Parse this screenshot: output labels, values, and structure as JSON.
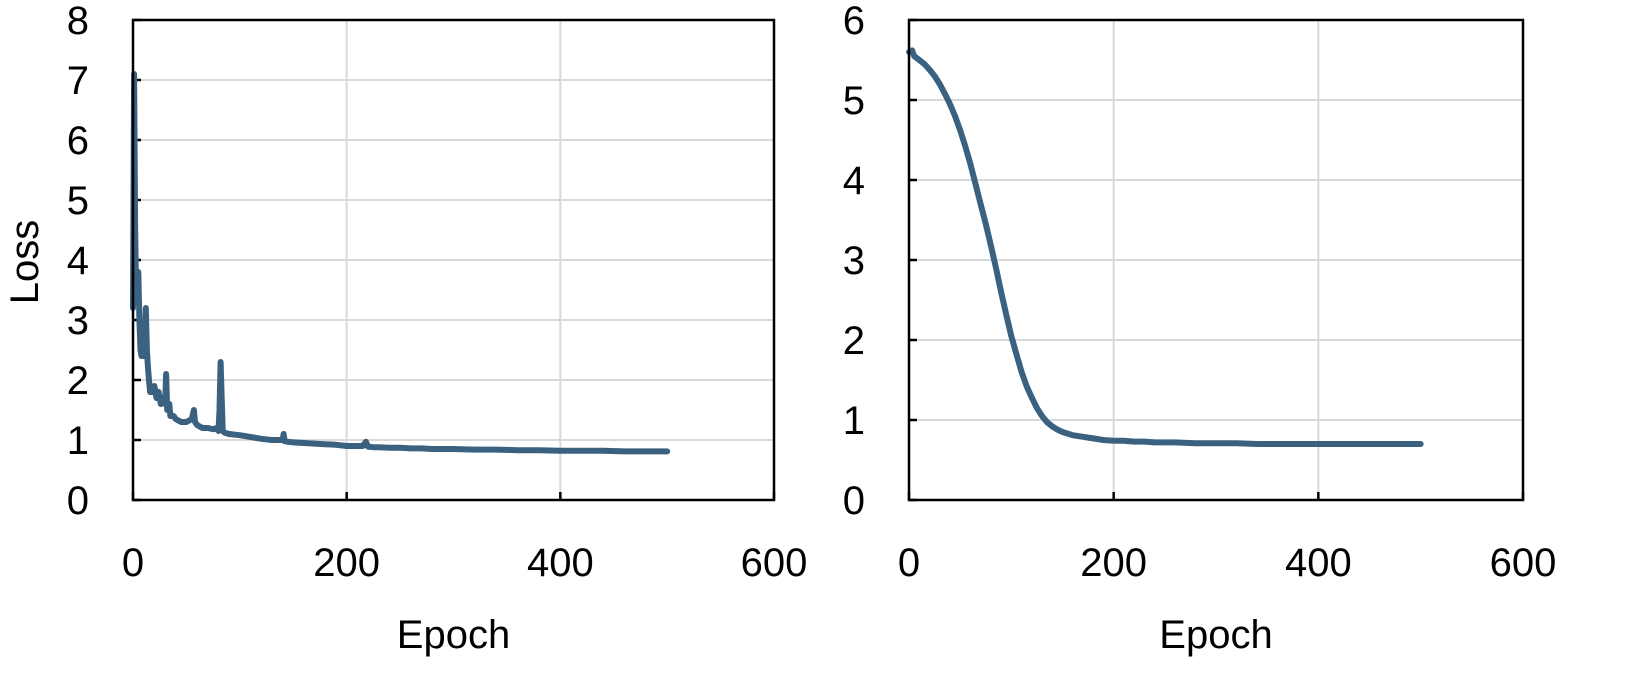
{
  "colors": {
    "series": "#3b6180",
    "grid": "#d9d9d9",
    "axis": "#000000"
  },
  "chart_data": [
    {
      "type": "line",
      "title": "",
      "xlabel": "Epoch",
      "ylabel": "Loss",
      "xlim": [
        0,
        600
      ],
      "ylim": [
        0,
        8
      ],
      "xticks": [
        "0",
        "200",
        "400",
        "600"
      ],
      "yticks": [
        "0",
        "1",
        "2",
        "3",
        "4",
        "5",
        "6",
        "7",
        "8"
      ],
      "grid": true,
      "series": [
        {
          "x": [
            0,
            1,
            2,
            3,
            4,
            5,
            6,
            7,
            8,
            9,
            10,
            11,
            12,
            13,
            14,
            15,
            16,
            17,
            18,
            20,
            22,
            24,
            26,
            28,
            30,
            31,
            32,
            33,
            34,
            35,
            36,
            38,
            40,
            45,
            50,
            55,
            57,
            58,
            60,
            65,
            70,
            75,
            78,
            80,
            81,
            82,
            84,
            86,
            90,
            100,
            110,
            120,
            130,
            140,
            141,
            142,
            145,
            150,
            160,
            170,
            180,
            190,
            200,
            210,
            215,
            218,
            220,
            225,
            230,
            240,
            250,
            260,
            270,
            280,
            290,
            300,
            320,
            340,
            360,
            380,
            400,
            420,
            440,
            460,
            480,
            500
          ],
          "y": [
            3.2,
            7.1,
            4.6,
            3.3,
            3.8,
            3.8,
            3.0,
            2.5,
            2.4,
            2.5,
            2.4,
            2.6,
            3.2,
            2.5,
            2.2,
            2.0,
            1.8,
            1.8,
            1.8,
            1.9,
            1.7,
            1.8,
            1.6,
            1.7,
            1.6,
            2.1,
            1.5,
            1.5,
            1.6,
            1.4,
            1.4,
            1.4,
            1.35,
            1.3,
            1.3,
            1.35,
            1.5,
            1.3,
            1.25,
            1.2,
            1.2,
            1.18,
            1.2,
            1.15,
            1.5,
            2.3,
            1.15,
            1.12,
            1.1,
            1.08,
            1.05,
            1.02,
            1.0,
            1.0,
            1.1,
            0.98,
            0.97,
            0.96,
            0.95,
            0.94,
            0.93,
            0.92,
            0.9,
            0.9,
            0.9,
            0.97,
            0.89,
            0.88,
            0.88,
            0.87,
            0.87,
            0.86,
            0.86,
            0.85,
            0.85,
            0.85,
            0.84,
            0.84,
            0.83,
            0.83,
            0.82,
            0.82,
            0.82,
            0.81,
            0.81,
            0.81
          ]
        }
      ]
    },
    {
      "type": "line",
      "title": "",
      "xlabel": "Epoch",
      "ylabel": "",
      "xlim": [
        0,
        600
      ],
      "ylim": [
        0,
        6
      ],
      "xticks": [
        "0",
        "200",
        "400",
        "600"
      ],
      "yticks": [
        "0",
        "1",
        "2",
        "3",
        "4",
        "5",
        "6"
      ],
      "grid": true,
      "series": [
        {
          "x": [
            0,
            3,
            5,
            10,
            15,
            20,
            25,
            30,
            35,
            40,
            45,
            50,
            55,
            60,
            65,
            70,
            75,
            80,
            85,
            90,
            95,
            100,
            105,
            110,
            115,
            120,
            125,
            130,
            135,
            140,
            145,
            150,
            155,
            160,
            165,
            170,
            175,
            180,
            190,
            200,
            210,
            220,
            230,
            240,
            250,
            260,
            280,
            300,
            320,
            340,
            360,
            380,
            400,
            420,
            440,
            460,
            480,
            500
          ],
          "y": [
            5.6,
            5.62,
            5.55,
            5.5,
            5.45,
            5.38,
            5.3,
            5.2,
            5.08,
            4.95,
            4.8,
            4.62,
            4.42,
            4.2,
            3.95,
            3.7,
            3.45,
            3.18,
            2.9,
            2.6,
            2.32,
            2.05,
            1.82,
            1.6,
            1.42,
            1.28,
            1.15,
            1.05,
            0.97,
            0.92,
            0.88,
            0.85,
            0.83,
            0.81,
            0.8,
            0.79,
            0.78,
            0.77,
            0.75,
            0.74,
            0.74,
            0.73,
            0.73,
            0.72,
            0.72,
            0.72,
            0.71,
            0.71,
            0.71,
            0.7,
            0.7,
            0.7,
            0.7,
            0.7,
            0.7,
            0.7,
            0.7,
            0.7
          ]
        }
      ]
    }
  ]
}
